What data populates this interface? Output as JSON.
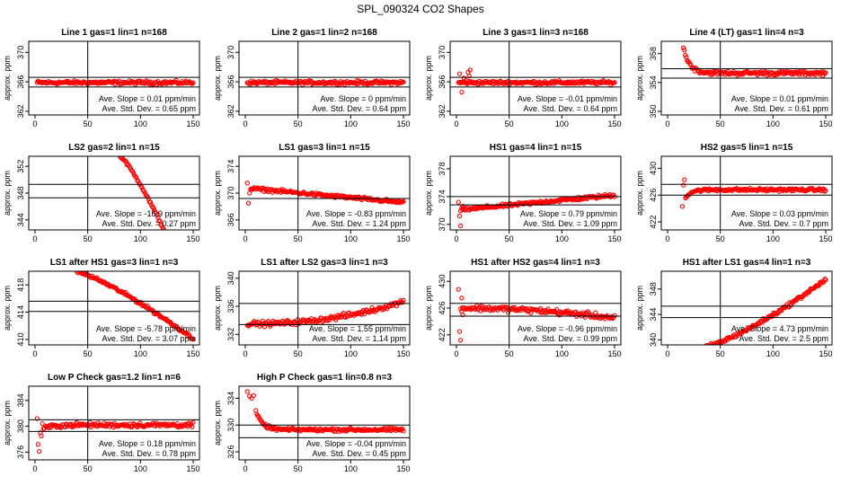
{
  "figure": {
    "title": "SPL_090324  CO2 Shapes",
    "point_color": "#ff0000"
  },
  "chart_data": [
    {
      "type": "scatter",
      "title": "Line 1 gas=1 lin=1 n=168",
      "xlabel": "",
      "ylabel": "approx. ppm",
      "xticks": [
        0,
        50,
        100,
        150
      ],
      "xlim": [
        0,
        150
      ],
      "yticks": [
        362,
        366,
        370
      ],
      "ylim": [
        361.5,
        371.5
      ],
      "vline": 50,
      "hlines": [
        366.6,
        365.3
      ],
      "series": [
        {
          "name": "CO2",
          "shape": "flat",
          "x_start": 2,
          "x_end": 150,
          "level": 365.9,
          "noise": 0.2
        }
      ],
      "annotations": [
        "Ave. Slope =  0.01  ppm/min",
        "Ave. Std. Dev. =  0.65  ppm"
      ]
    },
    {
      "type": "scatter",
      "title": "Line 2 gas=1 lin=2 n=168",
      "xlabel": "",
      "ylabel": "approx. ppm",
      "xticks": [
        0,
        50,
        100,
        150
      ],
      "xlim": [
        0,
        150
      ],
      "yticks": [
        362,
        366,
        370
      ],
      "ylim": [
        361.5,
        371.5
      ],
      "vline": 50,
      "hlines": [
        366.6,
        365.3
      ],
      "series": [
        {
          "name": "CO2",
          "shape": "flat",
          "x_start": 2,
          "x_end": 150,
          "level": 365.9,
          "noise": 0.2
        }
      ],
      "annotations": [
        "Ave. Slope =  0  ppm/min",
        "Ave. Std. Dev. =  0.64  ppm"
      ]
    },
    {
      "type": "scatter",
      "title": "Line 3 gas=1 lin=3 n=168",
      "xlabel": "",
      "ylabel": "approx. ppm",
      "xticks": [
        0,
        50,
        100,
        150
      ],
      "xlim": [
        0,
        150
      ],
      "yticks": [
        362,
        366,
        370
      ],
      "ylim": [
        361.5,
        371.5
      ],
      "vline": 50,
      "hlines": [
        366.6,
        365.3
      ],
      "series": [
        {
          "name": "CO2",
          "shape": "flat",
          "x_start": 2,
          "x_end": 150,
          "level": 365.9,
          "noise": 0.2,
          "early": [
            [
              3,
              367.1
            ],
            [
              5,
              364.6
            ],
            [
              7,
              366.5
            ],
            [
              9,
              366.2
            ],
            [
              11,
              367.3
            ],
            [
              12,
              366.8
            ],
            [
              13,
              367.6
            ]
          ]
        }
      ],
      "annotations": [
        "Ave. Slope =  -0.01  ppm/min",
        "Ave. Std. Dev. =  0.64  ppm"
      ]
    },
    {
      "type": "scatter",
      "title": "Line 4 (LT) gas=1 lin=4 n=3",
      "xlabel": "",
      "ylabel": "approx. ppm",
      "xticks": [
        0,
        50,
        100,
        150
      ],
      "xlim": [
        0,
        150
      ],
      "yticks": [
        350,
        354,
        358
      ],
      "ylim": [
        349.5,
        359.7
      ],
      "vline": 50,
      "hlines": [
        355.9,
        354.6
      ],
      "series": [
        {
          "name": "CO2",
          "shape": "decay",
          "x_start": 15,
          "x_end": 150,
          "level": 355.3,
          "noise": 0.25,
          "amp": 3.5,
          "tau": 6
        }
      ],
      "annotations": [
        "Ave. Slope =  0.01  ppm/min",
        "Ave. Std. Dev. =  0.61  ppm"
      ]
    },
    {
      "type": "scatter",
      "title": "LS2 gas=2 lin=1 n=15",
      "xlabel": "",
      "ylabel": "approx. ppm",
      "xticks": [
        0,
        50,
        100,
        150
      ],
      "xlim": [
        0,
        150
      ],
      "yticks": [
        344,
        348,
        352
      ],
      "ylim": [
        342.5,
        353.5
      ],
      "vline": 50,
      "hlines": [
        349.3,
        347.3
      ],
      "series": [
        {
          "name": "CO2",
          "shape": "curve",
          "x_start": 80,
          "x_end": 122,
          "y0": 353.6,
          "y1": 342.6,
          "p": 1.25,
          "noise": 0.15
        }
      ],
      "annotations": [
        "Ave. Slope =  -16.9  ppm/min",
        "Ave. Std. Dev. =  0.27  ppm"
      ]
    },
    {
      "type": "scatter",
      "title": "LS1 gas=3 lin=1 n=15",
      "xlabel": "",
      "ylabel": "approx. ppm",
      "xticks": [
        0,
        50,
        100,
        150
      ],
      "xlim": [
        0,
        150
      ],
      "yticks": [
        366,
        370,
        374
      ],
      "ylim": [
        364.5,
        375.5
      ],
      "vline": 50,
      "hlines": [
        369.2,
        369.2
      ],
      "series": [
        {
          "name": "CO2",
          "shape": "curve",
          "x_start": 5,
          "x_end": 150,
          "y0": 370.7,
          "y1": 368.6,
          "p": 1.0,
          "noise": 0.2,
          "early": [
            [
              2,
              371.5
            ],
            [
              3,
              368.5
            ],
            [
              4,
              370.0
            ]
          ]
        }
      ],
      "annotations": [
        "Ave. Slope =  -0.83  ppm/min",
        "Ave. Std. Dev. =  1.24  ppm"
      ]
    },
    {
      "type": "scatter",
      "title": "HS1 gas=4 lin=1 n=15",
      "xlabel": "",
      "ylabel": "approx. ppm",
      "xticks": [
        0,
        50,
        100,
        150
      ],
      "xlim": [
        0,
        150
      ],
      "yticks": [
        370,
        374,
        378
      ],
      "ylim": [
        369.2,
        379.8
      ],
      "vline": 50,
      "hlines": [
        374.0,
        372.8
      ],
      "series": [
        {
          "name": "CO2",
          "shape": "curve",
          "x_start": 4,
          "x_end": 150,
          "y0": 372.1,
          "y1": 374.2,
          "p": 1.0,
          "noise": 0.2,
          "early": [
            [
              2,
              373.2
            ],
            [
              3,
              371.2
            ],
            [
              4,
              369.8
            ],
            [
              6,
              372.6
            ]
          ]
        }
      ],
      "annotations": [
        "Ave. Slope =  0.79  ppm/min",
        "Ave. Std. Dev. =  1.09  ppm"
      ]
    },
    {
      "type": "scatter",
      "title": "HS2 gas=5 lin=1 n=15",
      "xlabel": "",
      "ylabel": "approx. ppm",
      "xticks": [
        0,
        50,
        100,
        150
      ],
      "xlim": [
        0,
        150
      ],
      "yticks": [
        422,
        426,
        430
      ],
      "ylim": [
        420.8,
        431.8
      ],
      "vline": 50,
      "hlines": [
        427.6,
        426.0
      ],
      "series": [
        {
          "name": "CO2",
          "shape": "decay",
          "x_start": 17,
          "x_end": 150,
          "level": 426.8,
          "noise": 0.18,
          "amp": -1.2,
          "tau": 5,
          "early": [
            [
              14,
              424.3
            ],
            [
              15,
              427.5
            ],
            [
              16,
              428.3
            ]
          ]
        }
      ],
      "annotations": [
        "Ave. Slope =  0.03  ppm/min",
        "Ave. Std. Dev. =  0.7  ppm"
      ]
    },
    {
      "type": "scatter",
      "title": "LS1 after HS1 gas=3 lin=1 n=3",
      "xlabel": "",
      "ylabel": "approx. ppm",
      "xticks": [
        0,
        50,
        100,
        150
      ],
      "xlim": [
        0,
        150
      ],
      "yticks": [
        410,
        414,
        418
      ],
      "ylim": [
        409.2,
        420.0
      ],
      "vline": 50,
      "hlines": [
        415.6,
        414.1
      ],
      "series": [
        {
          "name": "CO2",
          "shape": "curve",
          "x_start": 40,
          "x_end": 150,
          "y0": 419.9,
          "y1": 410.1,
          "p": 1.25,
          "noise": 0.2
        }
      ],
      "annotations": [
        "Ave. Slope =  -5.78  ppm/min",
        "Ave. Std. Dev. =  3.07  ppm"
      ]
    },
    {
      "type": "scatter",
      "title": "LS1 after LS2 gas=3 lin=1 n=3",
      "xlabel": "",
      "ylabel": "approx. ppm",
      "xticks": [
        0,
        50,
        100,
        150
      ],
      "xlim": [
        0,
        150
      ],
      "yticks": [
        332,
        336,
        340
      ],
      "ylim": [
        330.5,
        341.0
      ],
      "vline": 50,
      "hlines": [
        336.4,
        333.4
      ],
      "series": [
        {
          "name": "CO2",
          "shape": "curve",
          "x_start": 2,
          "x_end": 150,
          "y0": 333.5,
          "y1": 336.7,
          "p": 2.2,
          "noise": 0.3
        }
      ],
      "annotations": [
        "Ave. Slope =  1.55  ppm/min",
        "Ave. Std. Dev. =  1.14  ppm"
      ]
    },
    {
      "type": "scatter",
      "title": "HS1 after HS2 gas=4 lin=1 n=3",
      "xlabel": "",
      "ylabel": "approx. ppm",
      "xticks": [
        0,
        50,
        100,
        150
      ],
      "xlim": [
        0,
        150
      ],
      "yticks": [
        422,
        426,
        430
      ],
      "ylim": [
        420.5,
        431.5
      ],
      "vline": 50,
      "hlines": [
        426.7,
        424.8
      ],
      "series": [
        {
          "name": "CO2",
          "shape": "curve",
          "x_start": 4,
          "x_end": 150,
          "y0": 426.0,
          "y1": 424.5,
          "p": 2.0,
          "noise": 0.35,
          "early": [
            [
              2,
              428.8
            ],
            [
              3,
              422.5
            ],
            [
              4,
              421.2
            ],
            [
              5,
              427.5
            ],
            [
              6,
              425.0
            ]
          ]
        }
      ],
      "annotations": [
        "Ave. Slope =  -0.96  ppm/min",
        "Ave. Std. Dev. =  0.99  ppm"
      ]
    },
    {
      "type": "scatter",
      "title": "HS1 after LS1 gas=4 lin=1 n=3",
      "xlabel": "",
      "ylabel": "approx. ppm",
      "xticks": [
        0,
        50,
        100,
        150
      ],
      "xlim": [
        0,
        150
      ],
      "yticks": [
        340,
        344,
        348
      ],
      "ylim": [
        339.2,
        350.8
      ],
      "vline": 50,
      "hlines": [
        345.3,
        343.5
      ],
      "series": [
        {
          "name": "CO2",
          "shape": "curve",
          "x_start": 35,
          "x_end": 150,
          "y0": 338.9,
          "y1": 349.5,
          "p": 1.3,
          "noise": 0.25
        }
      ],
      "annotations": [
        "Ave. Slope =  4.73  ppm/min",
        "Ave. Std. Dev. =  2.5  ppm"
      ]
    },
    {
      "type": "scatter",
      "title": "Low P Check gas=1.2 lin=1 n=6",
      "xlabel": "",
      "ylabel": "approx. ppm",
      "xticks": [
        0,
        50,
        100,
        150
      ],
      "xlim": [
        0,
        150
      ],
      "yticks": [
        376,
        380,
        384
      ],
      "ylim": [
        374.8,
        386.2
      ],
      "vline": 50,
      "hlines": [
        381.0,
        379.2
      ],
      "series": [
        {
          "name": "CO2",
          "shape": "decay",
          "x_start": 8,
          "x_end": 150,
          "level": 380.2,
          "noise": 0.3,
          "amp": -0.6,
          "tau": 8,
          "early": [
            [
              2,
              381.2
            ],
            [
              3,
              377.2
            ],
            [
              4,
              376.1
            ],
            [
              5,
              379.0
            ],
            [
              6,
              378.5
            ],
            [
              7,
              380.4
            ]
          ]
        }
      ],
      "annotations": [
        "Ave. Slope =  0.18  ppm/min",
        "Ave. Std. Dev. =  0.78  ppm"
      ]
    },
    {
      "type": "scatter",
      "title": "High P Check gas=1 lin=0.8 n=3",
      "xlabel": "",
      "ylabel": "approx. ppm",
      "xticks": [
        0,
        50,
        100,
        150
      ],
      "xlim": [
        0,
        150
      ],
      "yticks": [
        326,
        330,
        334
      ],
      "ylim": [
        324.8,
        335.8
      ],
      "vline": 50,
      "hlines": [
        330.0,
        328.1
      ],
      "series": [
        {
          "name": "CO2",
          "shape": "decay",
          "x_start": 10,
          "x_end": 150,
          "level": 329.3,
          "noise": 0.2,
          "amp": 2.8,
          "tau": 6,
          "early": [
            [
              2,
              335.0
            ],
            [
              4,
              334.3
            ],
            [
              6,
              334.0
            ],
            [
              8,
              334.4
            ]
          ]
        }
      ],
      "annotations": [
        "Ave. Slope =  -0.04  ppm/min",
        "Ave. Std. Dev. =  0.45  ppm"
      ]
    }
  ]
}
